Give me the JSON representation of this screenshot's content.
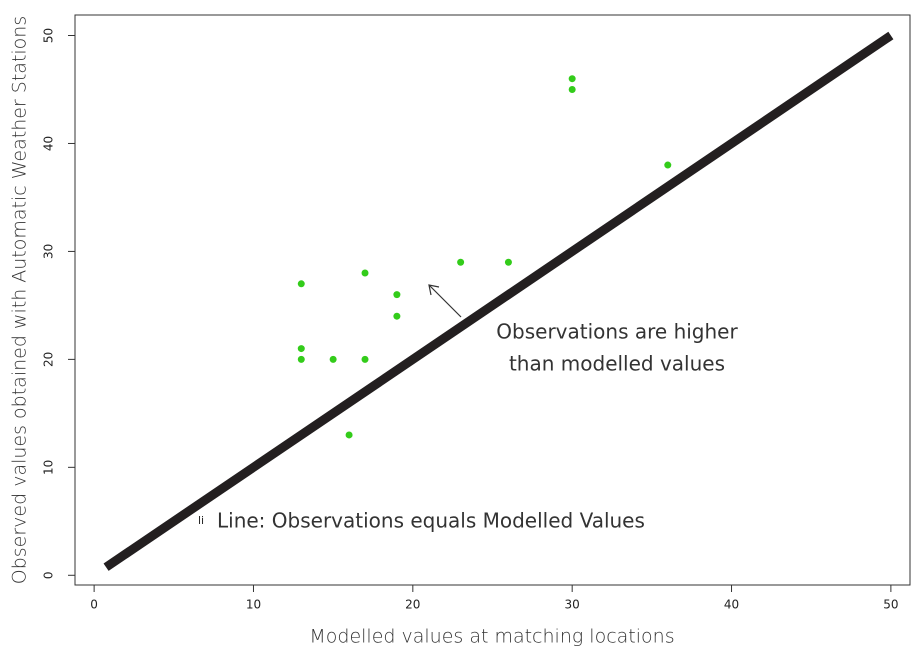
{
  "chart_data": {
    "type": "scatter",
    "x_label": "Modelled values at matching locations",
    "y_label": "Observed values obtained with Automatic Weather Stations",
    "xlim": [
      -1.2,
      51.2
    ],
    "ylim": [
      -0.9,
      51.9
    ],
    "xticks": [
      0,
      10,
      20,
      30,
      40,
      50
    ],
    "yticks": [
      0,
      10,
      20,
      30,
      40,
      50
    ],
    "points": {
      "color": "#33cc1a",
      "x": [
        13,
        13,
        13,
        15,
        16,
        17,
        17,
        19,
        19,
        23,
        26,
        30,
        30,
        36
      ],
      "y": [
        27,
        21,
        20,
        20,
        13,
        28,
        20,
        26,
        24,
        29,
        29,
        46,
        45,
        38
      ]
    },
    "reference_line": {
      "label": "Line: Observations equals Modelled Values",
      "marker": "li",
      "marker_color": "#2233cc",
      "color": "#231f20",
      "x": [
        0.75,
        50
      ],
      "y": [
        0.75,
        50
      ]
    },
    "annotation": [
      "Observations are higher",
      "than modelled values"
    ]
  }
}
